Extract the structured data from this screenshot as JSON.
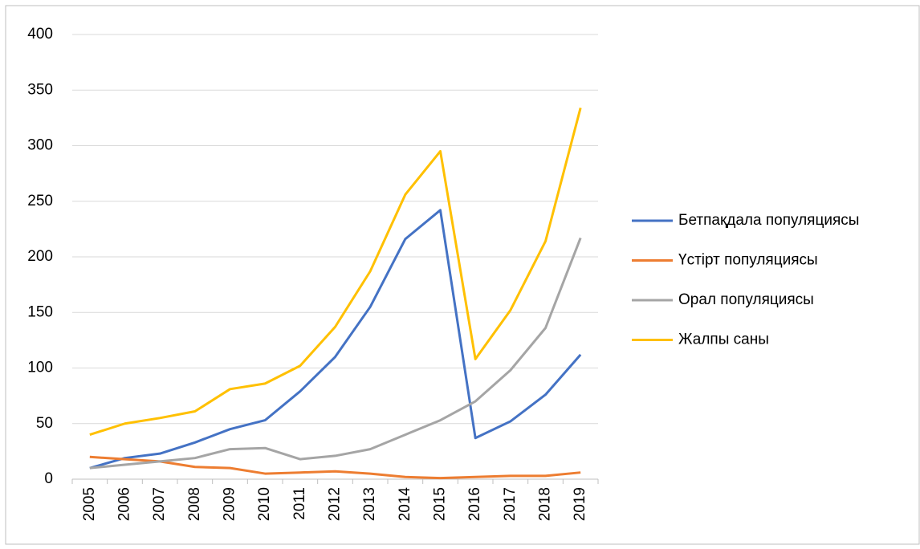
{
  "chart_data": {
    "type": "line",
    "categories": [
      "2005",
      "2006",
      "2007",
      "2008",
      "2009",
      "2010",
      "2011",
      "2012",
      "2013",
      "2014",
      "2015",
      "2016",
      "2017",
      "2018",
      "2019"
    ],
    "series": [
      {
        "name": "Бетпақдала популяциясы",
        "color": "#4472c4",
        "values": [
          10,
          19,
          23,
          33,
          45,
          53,
          79,
          110,
          155,
          216,
          242,
          37,
          52,
          76,
          112
        ]
      },
      {
        "name": "Үстірт популяциясы",
        "color": "#ed7d31",
        "values": [
          20,
          18,
          16,
          11,
          10,
          5,
          6,
          7,
          5,
          2,
          1,
          2,
          3,
          3,
          6
        ]
      },
      {
        "name": "Орал популяциясы",
        "color": "#a5a5a5",
        "values": [
          10,
          13,
          16,
          19,
          27,
          28,
          18,
          21,
          27,
          40,
          53,
          70,
          98,
          136,
          217
        ]
      },
      {
        "name": "Жалпы саны",
        "color": "#ffc000",
        "values": [
          40,
          50,
          55,
          61,
          81,
          86,
          102,
          137,
          187,
          256,
          295,
          108,
          152,
          214,
          334
        ]
      }
    ],
    "ylim": [
      0,
      400
    ],
    "yticks": [
      0,
      50,
      100,
      150,
      200,
      250,
      300,
      350,
      400
    ],
    "grid": true,
    "legend": "right"
  }
}
